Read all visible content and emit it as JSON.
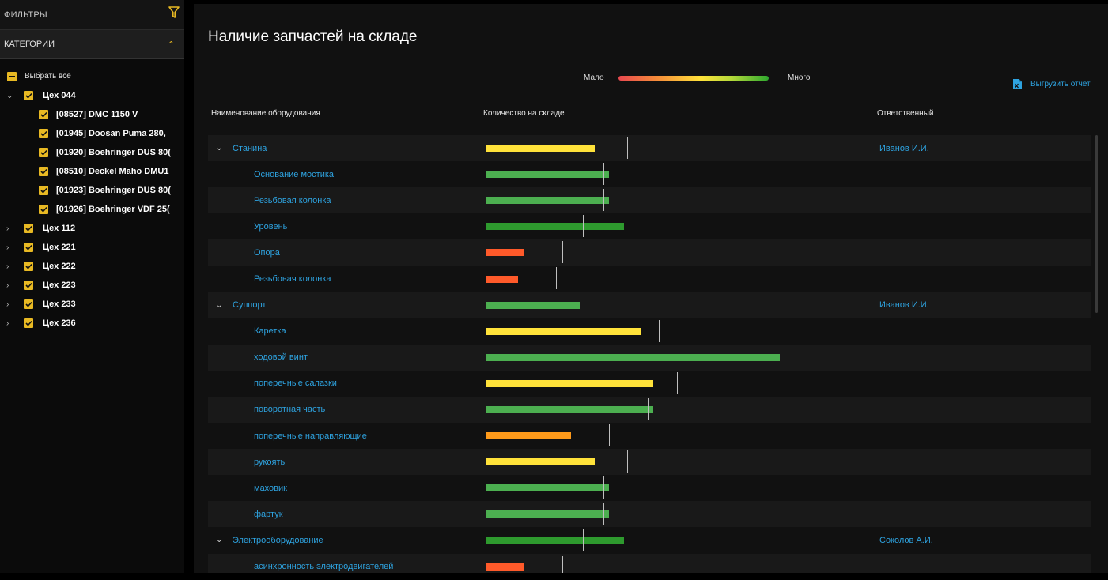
{
  "sidebar": {
    "filters_label": "ФИЛЬТРЫ",
    "filter_icon": "funnel-icon",
    "categories_label": "КАТЕГОРИИ",
    "select_all": "Выбрать все",
    "groups": [
      {
        "label": "Цех 044",
        "expanded": true,
        "children": [
          "[08527] DMC 1150 V",
          "[01945] Doosan Puma 280,",
          "[01920] Boehringer DUS 80(",
          "[08510] Deckel Maho DMU1",
          "[01923] Boehringer DUS 80(",
          "[01926] Boehringer VDF 25("
        ]
      },
      {
        "label": "Цех 112",
        "expanded": false,
        "children": []
      },
      {
        "label": "Цех 221",
        "expanded": false,
        "children": []
      },
      {
        "label": "Цех 222",
        "expanded": false,
        "children": []
      },
      {
        "label": "Цех 223",
        "expanded": false,
        "children": []
      },
      {
        "label": "Цех 233",
        "expanded": false,
        "children": []
      },
      {
        "label": "Цех 236",
        "expanded": false,
        "children": []
      }
    ]
  },
  "main": {
    "title": "Наличие запчастей на складе",
    "legend": {
      "low": "Мало",
      "high": "Много"
    },
    "export_label": "Выгрузить отчет",
    "columns": {
      "name": "Наименование оборудования",
      "qty": "Количество на складе",
      "resp": "Ответственный"
    }
  },
  "colors": {
    "yellow": "#ffe23a",
    "green": "#4caf50",
    "darkgreen": "#2e9a2e",
    "red": "#ff5a2a",
    "orange": "#ff9a1a",
    "accent": "#2ea3e0",
    "checkbox": "#e8b923"
  },
  "rows": [
    {
      "type": "group",
      "name": "Станина",
      "resp": "Иванов И.И.",
      "qty": 37,
      "target": 48,
      "color": "yellow"
    },
    {
      "type": "item",
      "name": "Основание мостика",
      "qty": 42,
      "target": 40,
      "color": "green"
    },
    {
      "type": "item",
      "name": "Резьбовая колонка",
      "qty": 42,
      "target": 40,
      "color": "green"
    },
    {
      "type": "item",
      "name": "Уровень",
      "qty": 47,
      "target": 33,
      "color": "darkgreen"
    },
    {
      "type": "item",
      "name": "Опора",
      "qty": 13,
      "target": 26,
      "color": "red"
    },
    {
      "type": "item",
      "name": "Резьбовая колонка",
      "qty": 11,
      "target": 24,
      "color": "red"
    },
    {
      "type": "group",
      "name": "Суппорт",
      "resp": "Иванов И.И.",
      "qty": 32,
      "target": 27,
      "color": "green"
    },
    {
      "type": "item",
      "name": "Каретка",
      "qty": 53,
      "target": 59,
      "color": "yellow"
    },
    {
      "type": "item",
      "name": "ходовой винт",
      "qty": 100,
      "target": 81,
      "color": "green"
    },
    {
      "type": "item",
      "name": "поперечные салазки",
      "qty": 57,
      "target": 65,
      "color": "yellow"
    },
    {
      "type": "item",
      "name": "поворотная часть",
      "qty": 57,
      "target": 55,
      "color": "green"
    },
    {
      "type": "item",
      "name": "поперечные направляющие",
      "qty": 29,
      "target": 42,
      "color": "orange"
    },
    {
      "type": "item",
      "name": "рукоять",
      "qty": 37,
      "target": 48,
      "color": "yellow"
    },
    {
      "type": "item",
      "name": "маховик",
      "qty": 42,
      "target": 40,
      "color": "green"
    },
    {
      "type": "item",
      "name": "фартук",
      "qty": 42,
      "target": 40,
      "color": "green"
    },
    {
      "type": "group",
      "name": "Электрооборудование",
      "resp": "Соколов А.И.",
      "qty": 47,
      "target": 33,
      "color": "darkgreen"
    },
    {
      "type": "item",
      "name": "асинхронность электродвигателей",
      "qty": 13,
      "target": 26,
      "color": "red"
    }
  ]
}
